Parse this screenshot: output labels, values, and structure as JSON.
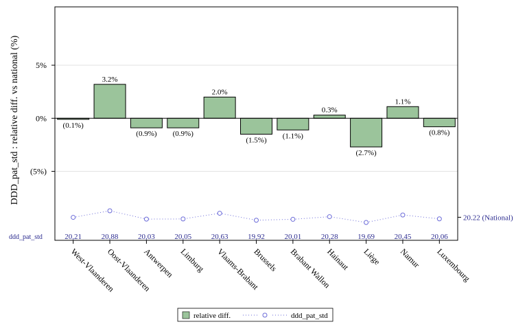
{
  "chart_data": {
    "type": "bar",
    "ylabel": "DDD_pat_std : relative diff. vs national (%)",
    "y_ticks": [
      "5%",
      "0%",
      "(5%)"
    ],
    "y_tick_values": [
      5,
      0,
      -5
    ],
    "ylim": [
      -11.5,
      10.5
    ],
    "grid": true,
    "categories": [
      "West-Vlaanderen",
      "Oost-Vlaanderen",
      "Antwerpen",
      "Limburg",
      "Vlaams-Brabant",
      "Brussels",
      "Brabant Wallon",
      "Hainaut",
      "Liège",
      "Namur",
      "Luxembourg"
    ],
    "series": [
      {
        "name": "relative diff.",
        "type": "bar",
        "color": "#9bc49b",
        "values": [
          -0.1,
          3.2,
          -0.9,
          -0.9,
          2.0,
          -1.5,
          -1.1,
          0.3,
          -2.7,
          1.1,
          -0.8
        ],
        "labels": [
          "(0.1%)",
          "3.2%",
          "(0.9%)",
          "(0.9%)",
          "2.0%",
          "(1.5%)",
          "(1.1%)",
          "0.3%",
          "(2.7%)",
          "1.1%",
          "(0.8%)"
        ]
      },
      {
        "name": "ddd_pat_std",
        "type": "line",
        "color": "#6a6ad8",
        "values": [
          20.21,
          20.88,
          20.03,
          20.05,
          20.63,
          19.92,
          20.01,
          20.28,
          19.69,
          20.45,
          20.06
        ],
        "labels": [
          "20,21",
          "20,88",
          "20,03",
          "20,05",
          "20,63",
          "19,92",
          "20,01",
          "20,28",
          "19,69",
          "20,45",
          "20,06"
        ],
        "axis_label": "ddd_pat_std"
      }
    ],
    "reference_label": "20.22 (National)",
    "reference_value": 20.22,
    "legend": {
      "placement": "bottom",
      "items": [
        "relative diff.",
        "ddd_pat_std"
      ]
    }
  }
}
